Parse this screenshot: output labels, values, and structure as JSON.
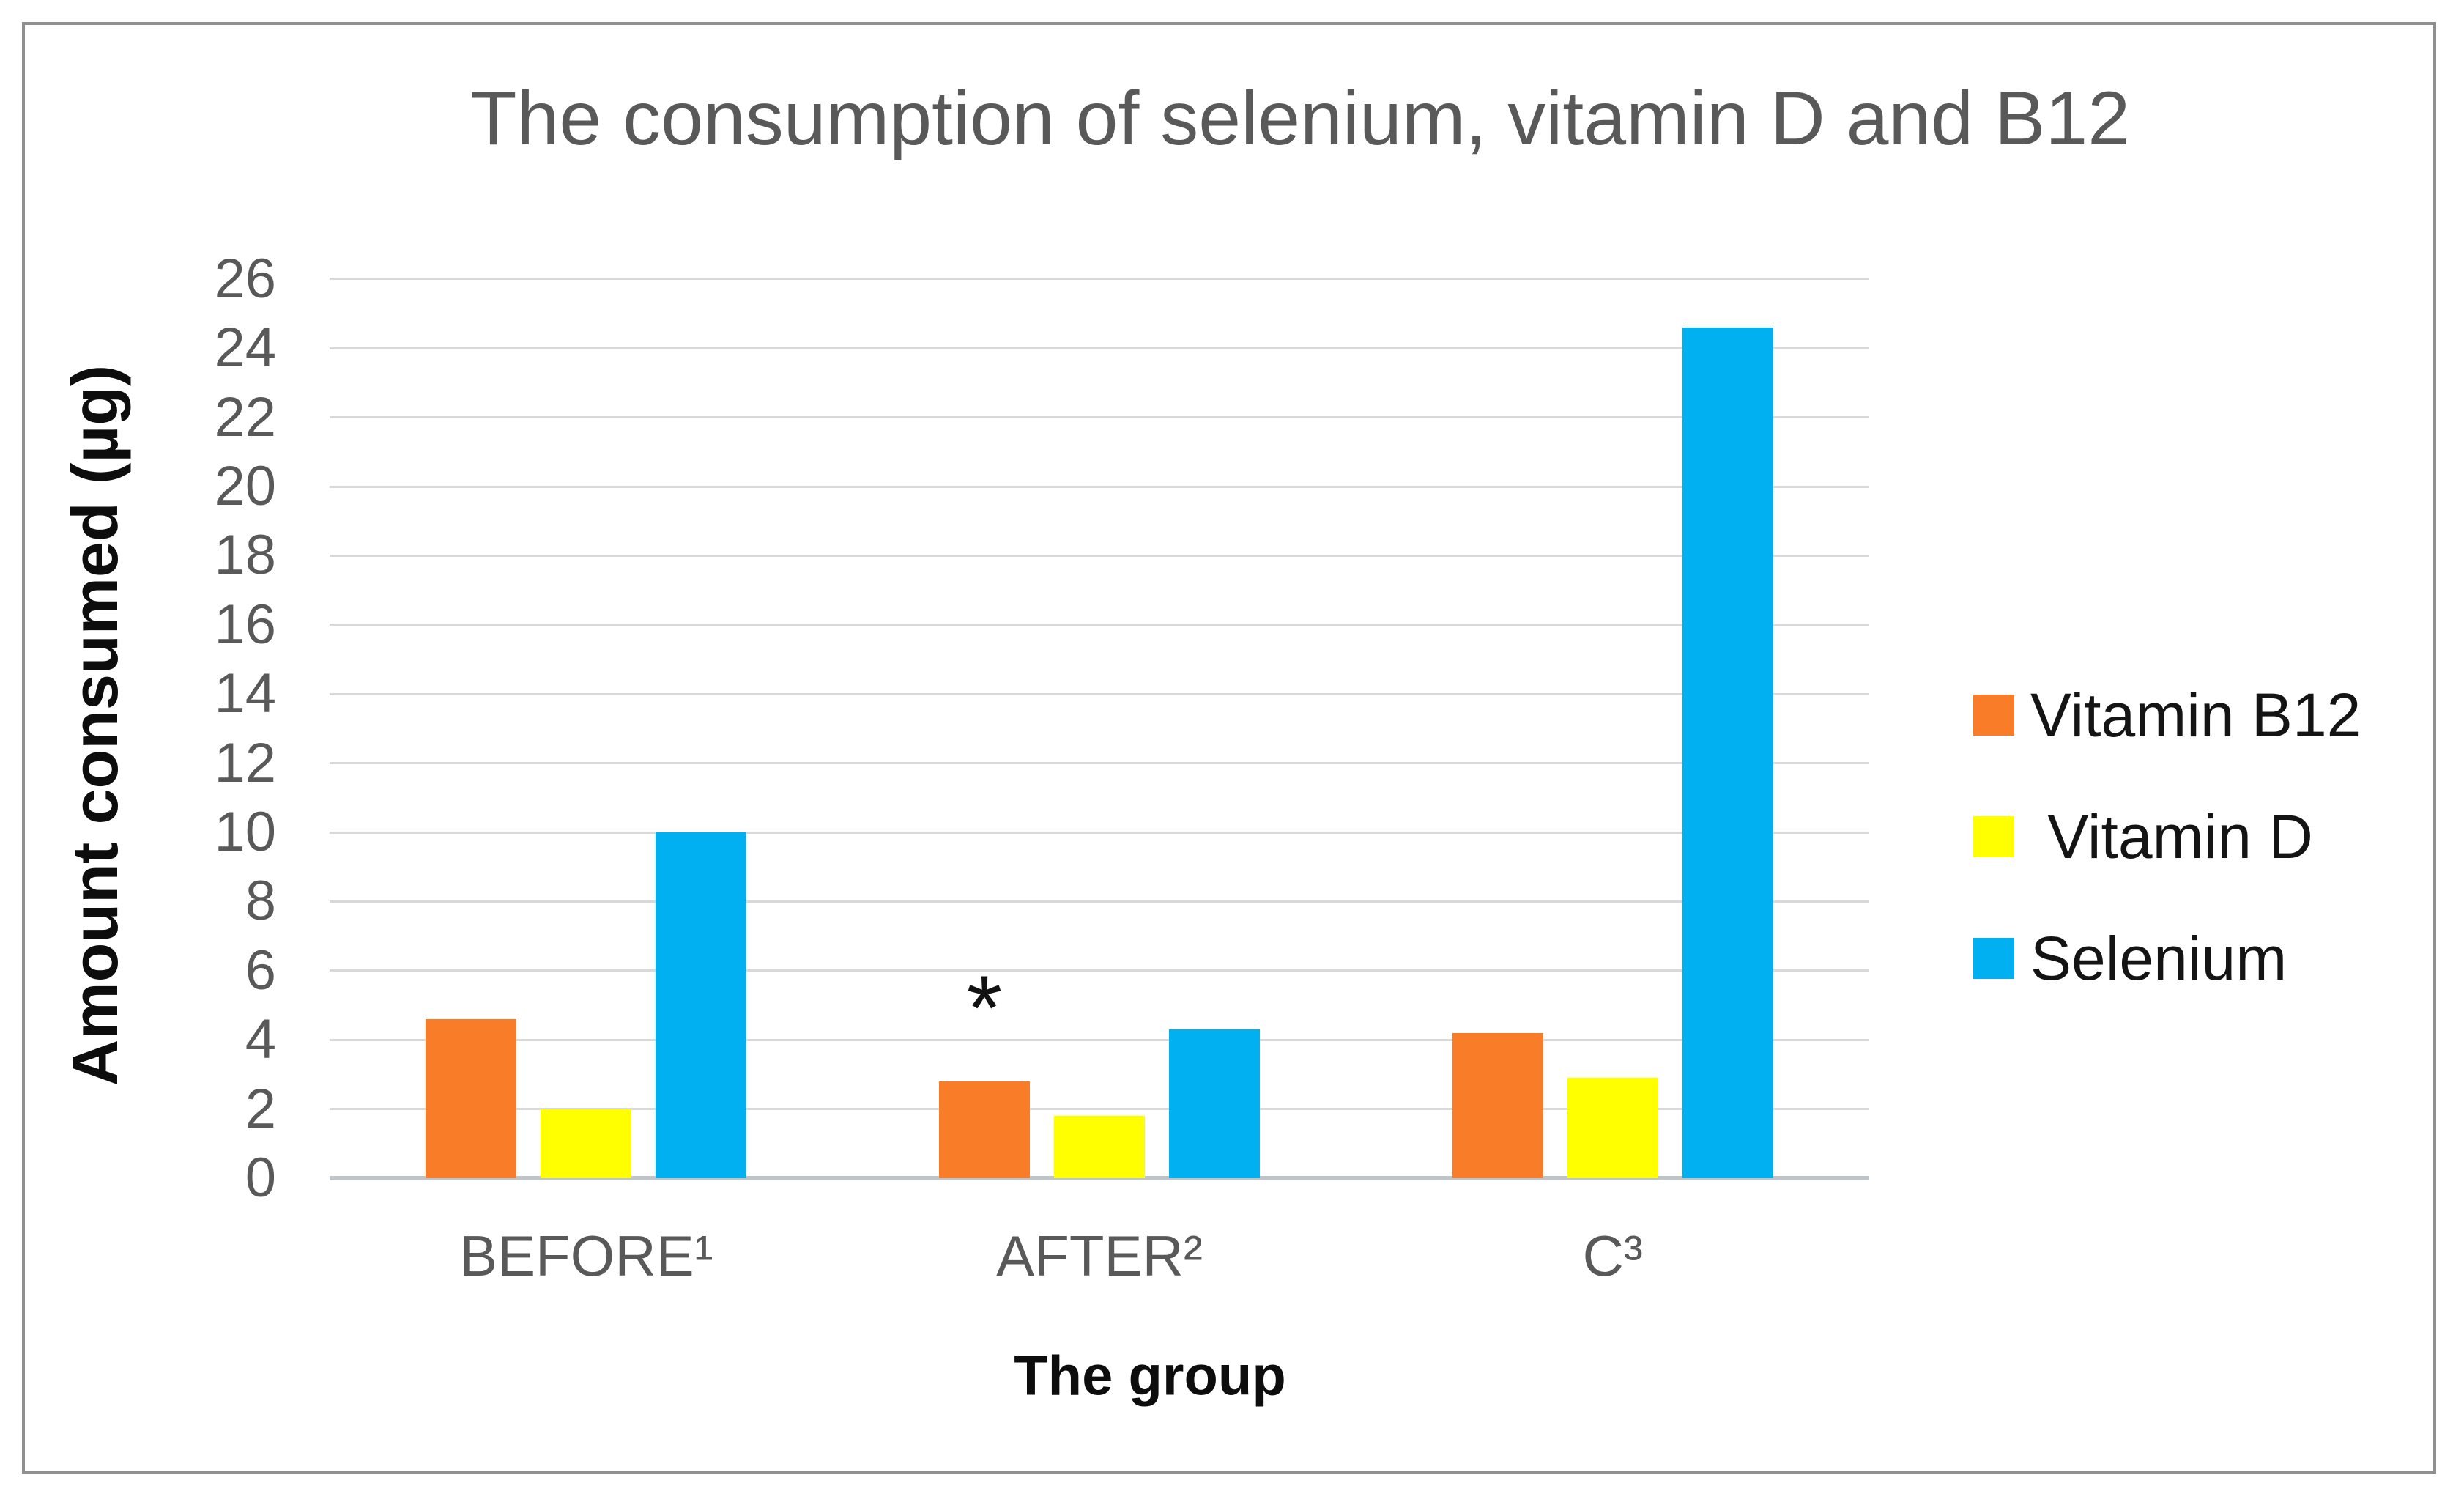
{
  "chart_data": {
    "type": "bar",
    "title": "The consumption of selenium, vitamin D and B12",
    "xlabel": "The group",
    "ylabel": "Amount consumed (µg)",
    "categories": [
      "BEFORE¹",
      "AFTER²",
      "C³"
    ],
    "series": [
      {
        "name": "Vitamin B12",
        "color": "#F97C28",
        "values": [
          4.6,
          2.8,
          4.2
        ]
      },
      {
        "name": " Vitamin D",
        "color": "#FFFF00",
        "values": [
          2.0,
          1.8,
          2.9
        ]
      },
      {
        "name": "Selenium",
        "color": "#00B0F0",
        "values": [
          10.0,
          4.3,
          24.6
        ]
      }
    ],
    "ylim": [
      0,
      26
    ],
    "ytick_step": 2,
    "grid": true,
    "legend_position": "right",
    "annotation": {
      "text": "*",
      "category_index": 1,
      "series_index": 0
    }
  },
  "frame": {
    "border_color": "#8f8f8f",
    "background": "#ffffff"
  },
  "text_colors": {
    "title": "#595959",
    "ticks": "#595959",
    "axis_titles": "#0d0d0d",
    "legend": "#141414"
  }
}
